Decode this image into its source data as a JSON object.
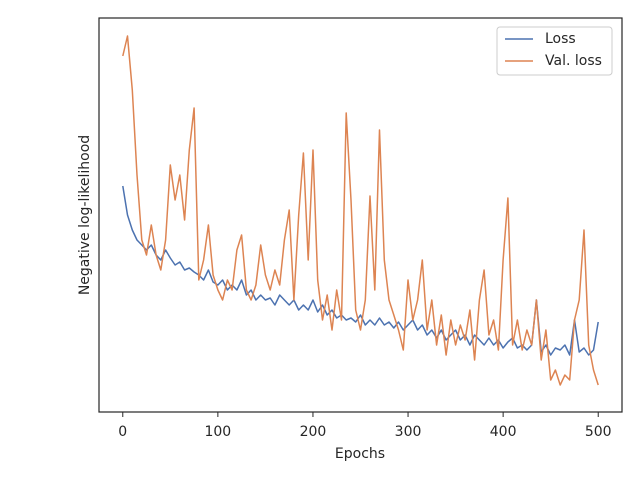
{
  "chart_data": {
    "type": "line",
    "xlabel": "Epochs",
    "ylabel": "Negative log-likelihood",
    "x": [
      0,
      5,
      10,
      15,
      20,
      25,
      30,
      35,
      40,
      45,
      50,
      55,
      60,
      65,
      70,
      75,
      80,
      85,
      90,
      95,
      100,
      105,
      110,
      115,
      120,
      125,
      130,
      135,
      140,
      145,
      150,
      155,
      160,
      165,
      170,
      175,
      180,
      185,
      190,
      195,
      200,
      205,
      210,
      215,
      220,
      225,
      230,
      235,
      240,
      245,
      250,
      255,
      260,
      265,
      270,
      275,
      280,
      285,
      290,
      295,
      300,
      305,
      310,
      315,
      320,
      325,
      330,
      335,
      340,
      345,
      350,
      355,
      360,
      365,
      370,
      375,
      380,
      385,
      390,
      395,
      400,
      405,
      410,
      415,
      420,
      425,
      430,
      435,
      440,
      445,
      450,
      455,
      460,
      465,
      470,
      475,
      480,
      485,
      490,
      495,
      500
    ],
    "series": [
      {
        "name": "Loss",
        "color": "#4c72b0",
        "values": [
          226,
          197,
          182,
          172,
          167,
          162,
          167,
          157,
          152,
          162,
          154,
          147,
          150,
          142,
          144,
          140,
          137,
          132,
          142,
          130,
          127,
          132,
          122,
          127,
          122,
          132,
          117,
          122,
          112,
          117,
          112,
          114,
          107,
          117,
          112,
          107,
          112,
          102,
          107,
          102,
          112,
          100,
          107,
          97,
          102,
          94,
          97,
          92,
          94,
          90,
          97,
          87,
          92,
          87,
          94,
          87,
          90,
          84,
          90,
          82,
          87,
          92,
          82,
          87,
          77,
          82,
          74,
          82,
          72,
          77,
          82,
          72,
          77,
          67,
          77,
          72,
          67,
          74,
          67,
          72,
          64,
          70,
          74,
          64,
          67,
          62,
          67,
          112,
          60,
          67,
          57,
          64,
          62,
          67,
          57,
          92,
          60,
          64,
          57,
          62,
          90
        ]
      },
      {
        "name": "Val. loss",
        "color": "#dd8452",
        "values": [
          356,
          376,
          322,
          237,
          172,
          157,
          187,
          157,
          142,
          172,
          247,
          212,
          237,
          192,
          262,
          304,
          132,
          152,
          187,
          137,
          122,
          112,
          132,
          122,
          162,
          177,
          122,
          112,
          127,
          167,
          137,
          122,
          142,
          127,
          172,
          202,
          112,
          197,
          259,
          152,
          262,
          132,
          92,
          117,
          82,
          122,
          92,
          299,
          212,
          102,
          82,
          112,
          216,
          122,
          282,
          152,
          112,
          97,
          82,
          62,
          132,
          92,
          112,
          152,
          82,
          112,
          67,
          97,
          57,
          92,
          67,
          87,
          72,
          102,
          52,
          112,
          142,
          77,
          92,
          62,
          152,
          214,
          67,
          92,
          62,
          82,
          67,
          112,
          52,
          82,
          32,
          42,
          27,
          37,
          32,
          92,
          112,
          182,
          67,
          42,
          27
        ]
      }
    ],
    "xlim": [
      -25,
      525
    ],
    "xticks": [
      0,
      100,
      200,
      300,
      400,
      500
    ],
    "ylim": [
      0,
      394
    ],
    "legend": "upper right",
    "grid": false
  }
}
